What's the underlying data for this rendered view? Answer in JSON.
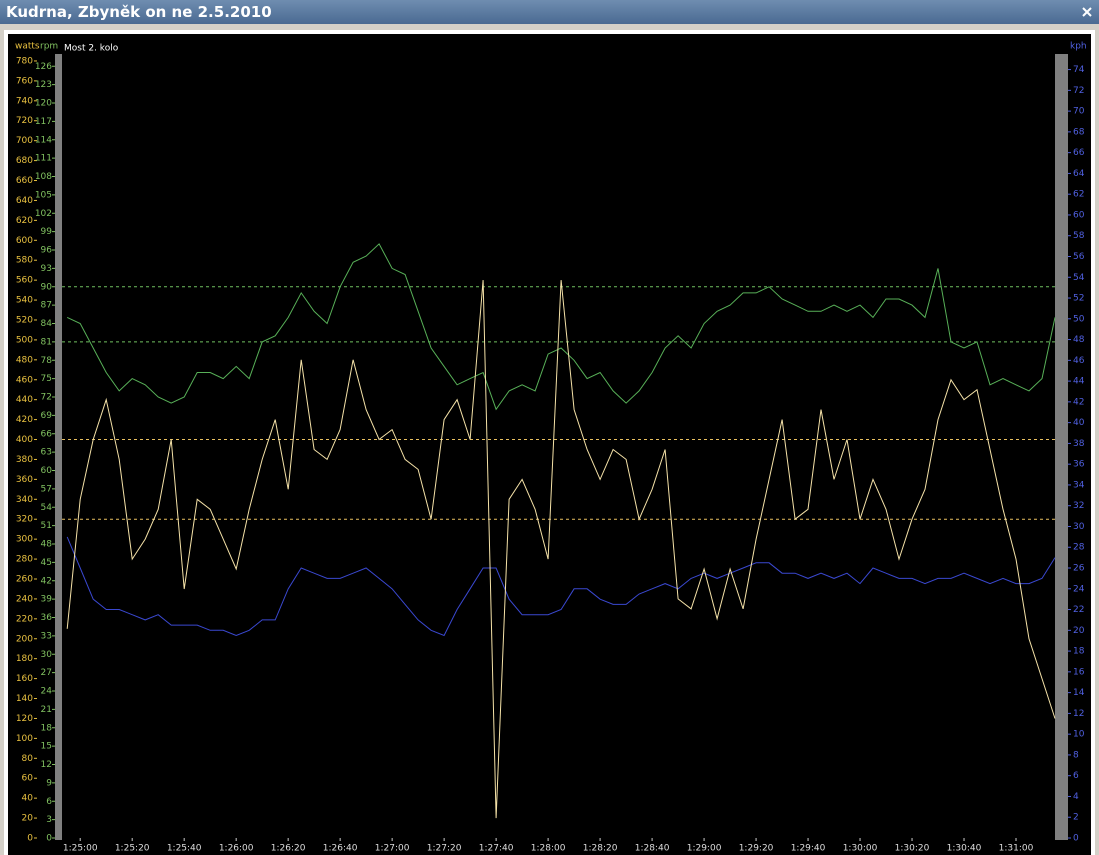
{
  "window_title": "Kudrna, Zbyněk on ne 2.5.2010",
  "chart_data": {
    "type": "line",
    "subtitle": "Most 2. kolo",
    "x": [
      5095,
      5100,
      5105,
      5110,
      5115,
      5120,
      5125,
      5130,
      5135,
      5140,
      5145,
      5150,
      5155,
      5160,
      5165,
      5170,
      5175,
      5180,
      5185,
      5190,
      5195,
      5200,
      5205,
      5210,
      5215,
      5220,
      5225,
      5230,
      5235,
      5240,
      5245,
      5250,
      5255,
      5260,
      5265,
      5270,
      5275,
      5280,
      5285,
      5290,
      5295,
      5300,
      5305,
      5310,
      5315,
      5320,
      5325,
      5330,
      5335,
      5340,
      5345,
      5350,
      5355,
      5360,
      5365,
      5370,
      5375,
      5380,
      5385,
      5390,
      5395,
      5400,
      5405,
      5410,
      5415,
      5420,
      5425,
      5430,
      5435,
      5440,
      5445,
      5450,
      5455,
      5460,
      5465,
      5470,
      5475
    ],
    "xlim": [
      5093,
      5475
    ],
    "xticks": [
      {
        "value": 5100,
        "label": "1:25:00"
      },
      {
        "value": 5120,
        "label": "1:25:20"
      },
      {
        "value": 5140,
        "label": "1:25:40"
      },
      {
        "value": 5160,
        "label": "1:26:00"
      },
      {
        "value": 5180,
        "label": "1:26:20"
      },
      {
        "value": 5200,
        "label": "1:26:40"
      },
      {
        "value": 5220,
        "label": "1:27:00"
      },
      {
        "value": 5240,
        "label": "1:27:20"
      },
      {
        "value": 5260,
        "label": "1:27:40"
      },
      {
        "value": 5280,
        "label": "1:28:00"
      },
      {
        "value": 5300,
        "label": "1:28:20"
      },
      {
        "value": 5320,
        "label": "1:28:40"
      },
      {
        "value": 5340,
        "label": "1:29:00"
      },
      {
        "value": 5360,
        "label": "1:29:20"
      },
      {
        "value": 5380,
        "label": "1:29:40"
      },
      {
        "value": 5400,
        "label": "1:30:00"
      },
      {
        "value": 5420,
        "label": "1:30:20"
      },
      {
        "value": 5440,
        "label": "1:30:40"
      },
      {
        "value": 5460,
        "label": "1:31:00"
      }
    ],
    "axes": [
      {
        "label": "watts",
        "color": "#e8c040",
        "ylim": [
          0,
          787
        ],
        "yticks": [
          0,
          20,
          40,
          60,
          80,
          100,
          120,
          140,
          160,
          180,
          200,
          220,
          240,
          260,
          280,
          300,
          320,
          340,
          360,
          380,
          400,
          420,
          440,
          460,
          480,
          500,
          520,
          540,
          560,
          580,
          600,
          620,
          640,
          660,
          680,
          700,
          720,
          740,
          760,
          780
        ]
      },
      {
        "label": "rpm",
        "color": "#80c060",
        "ylim": [
          0,
          128
        ],
        "yticks": [
          0,
          3,
          6,
          9,
          12,
          15,
          18,
          21,
          24,
          27,
          30,
          33,
          36,
          39,
          42,
          45,
          48,
          51,
          54,
          57,
          60,
          63,
          66,
          69,
          72,
          75,
          78,
          81,
          84,
          87,
          90,
          93,
          96,
          99,
          102,
          105,
          108,
          111,
          114,
          117,
          120,
          123,
          126
        ]
      },
      {
        "label": "kph",
        "color": "#5060e0",
        "ylim": [
          0,
          75.5
        ],
        "yticks": [
          0,
          2,
          4,
          6,
          8,
          10,
          12,
          14,
          16,
          18,
          20,
          22,
          24,
          26,
          28,
          30,
          32,
          34,
          36,
          38,
          40,
          42,
          44,
          46,
          48,
          50,
          52,
          54,
          56,
          58,
          60,
          62,
          64,
          66,
          68,
          70,
          72,
          74
        ]
      }
    ],
    "ref_lines": [
      {
        "axis": 1,
        "value": 90,
        "color": "#70c060"
      },
      {
        "axis": 1,
        "value": 81,
        "color": "#70c060"
      },
      {
        "axis": 0,
        "value": 400,
        "color": "#e8c060"
      },
      {
        "axis": 0,
        "value": 320,
        "color": "#e8c060"
      }
    ],
    "series": [
      {
        "axis": 2,
        "color": "#3a48d0",
        "values": [
          29,
          26,
          23,
          22,
          22,
          21.5,
          21,
          21.5,
          20.5,
          20.5,
          20.5,
          20,
          20,
          19.5,
          20,
          21,
          21,
          24,
          26,
          25.5,
          25,
          25,
          25.5,
          26,
          25,
          24,
          22.5,
          21,
          20,
          19.5,
          22,
          24,
          26,
          26,
          23,
          21.5,
          21.5,
          21.5,
          22,
          24,
          24,
          23,
          22.5,
          22.5,
          23.5,
          24,
          24.5,
          24,
          25,
          25.5,
          25,
          25.5,
          26,
          26.5,
          26.5,
          25.5,
          25.5,
          25,
          25.5,
          25,
          25.5,
          24.5,
          26,
          25.5,
          25,
          25,
          24.5,
          25,
          25,
          25.5,
          25,
          24.5,
          25,
          24.5,
          24.5,
          25,
          27
        ]
      },
      {
        "axis": 1,
        "color": "#58b058",
        "values": [
          85,
          84,
          80,
          76,
          73,
          75,
          74,
          72,
          71,
          72,
          76,
          76,
          75,
          77,
          75,
          81,
          82,
          85,
          89,
          86,
          84,
          90,
          94,
          95,
          97,
          93,
          92,
          86,
          80,
          77,
          74,
          75,
          76,
          70,
          73,
          74,
          73,
          79,
          80,
          78,
          75,
          76,
          73,
          71,
          73,
          76,
          80,
          82,
          80,
          84,
          86,
          87,
          89,
          89,
          90,
          88,
          87,
          86,
          86,
          87,
          86,
          87,
          85,
          88,
          88,
          87,
          85,
          93,
          81,
          80,
          81,
          74,
          75,
          74,
          73,
          75,
          85
        ]
      },
      {
        "axis": 0,
        "color": "#f5e2a8",
        "values": [
          210,
          340,
          400,
          440,
          380,
          280,
          300,
          330,
          400,
          250,
          340,
          330,
          300,
          270,
          330,
          380,
          420,
          350,
          480,
          390,
          380,
          410,
          480,
          430,
          400,
          410,
          380,
          370,
          320,
          420,
          440,
          400,
          560,
          20,
          340,
          360,
          330,
          280,
          560,
          430,
          390,
          360,
          390,
          380,
          320,
          350,
          390,
          240,
          230,
          270,
          220,
          270,
          230,
          300,
          360,
          420,
          320,
          330,
          430,
          360,
          400,
          320,
          360,
          330,
          280,
          320,
          350,
          420,
          460,
          440,
          450,
          390,
          330,
          280,
          200,
          160,
          120
        ]
      }
    ]
  }
}
